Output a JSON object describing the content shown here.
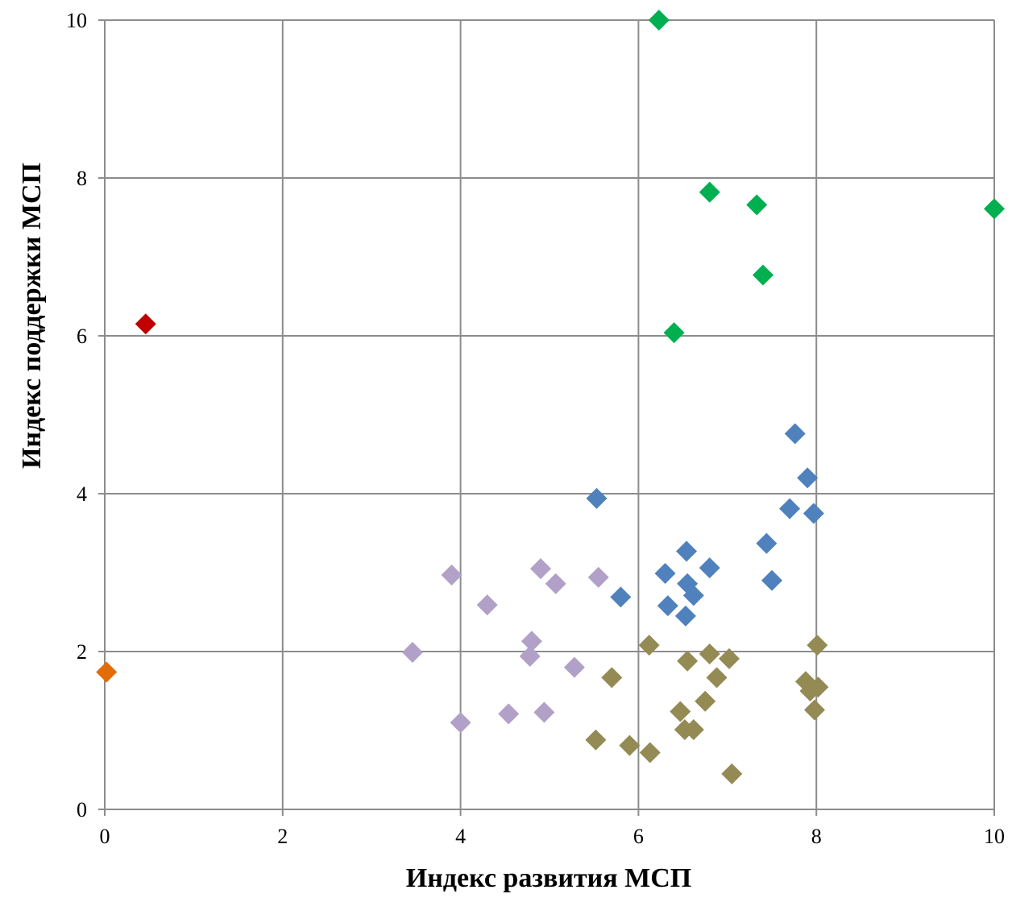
{
  "chart_data": {
    "type": "scatter",
    "xlabel": "Индекс развития МСП",
    "ylabel": "Индекс поддержки МСП",
    "xlim": [
      0,
      10
    ],
    "ylim": [
      0,
      10
    ],
    "xticks": [
      "0",
      "2",
      "4",
      "6",
      "8",
      "10"
    ],
    "yticks": [
      "0",
      "2",
      "4",
      "6",
      "8",
      "10"
    ],
    "grid": true,
    "marker": "diamond",
    "series": [
      {
        "color": "#00b050",
        "points": [
          [
            6.23,
            10.0
          ],
          [
            6.8,
            7.82
          ],
          [
            7.33,
            7.66
          ],
          [
            10.0,
            7.61
          ],
          [
            7.4,
            6.77
          ],
          [
            6.4,
            6.04
          ]
        ]
      },
      {
        "color": "#c00000",
        "points": [
          [
            0.46,
            6.15
          ]
        ]
      },
      {
        "color": "#e36c09",
        "points": [
          [
            0.02,
            1.74
          ]
        ]
      },
      {
        "color": "#4f81bd",
        "points": [
          [
            7.76,
            4.76
          ],
          [
            7.9,
            4.2
          ],
          [
            5.53,
            3.94
          ],
          [
            7.7,
            3.81
          ],
          [
            7.97,
            3.75
          ],
          [
            7.44,
            3.37
          ],
          [
            6.54,
            3.27
          ],
          [
            6.8,
            3.06
          ],
          [
            6.3,
            2.99
          ],
          [
            7.5,
            2.9
          ],
          [
            6.55,
            2.86
          ],
          [
            6.62,
            2.71
          ],
          [
            5.8,
            2.69
          ],
          [
            6.33,
            2.58
          ],
          [
            6.53,
            2.45
          ]
        ]
      },
      {
        "color": "#b1a0c7",
        "points": [
          [
            3.9,
            2.97
          ],
          [
            4.9,
            3.05
          ],
          [
            5.55,
            2.94
          ],
          [
            5.07,
            2.86
          ],
          [
            4.3,
            2.59
          ],
          [
            3.46,
            1.99
          ],
          [
            4.8,
            2.13
          ],
          [
            4.78,
            1.94
          ],
          [
            5.28,
            1.8
          ],
          [
            4.0,
            1.1
          ],
          [
            4.54,
            1.21
          ],
          [
            4.94,
            1.23
          ]
        ]
      },
      {
        "color": "#948a54",
        "points": [
          [
            6.12,
            2.08
          ],
          [
            8.01,
            2.08
          ],
          [
            6.8,
            1.97
          ],
          [
            7.02,
            1.91
          ],
          [
            6.55,
            1.88
          ],
          [
            5.7,
            1.67
          ],
          [
            6.88,
            1.67
          ],
          [
            7.88,
            1.62
          ],
          [
            8.02,
            1.55
          ],
          [
            7.93,
            1.5
          ],
          [
            6.75,
            1.37
          ],
          [
            6.47,
            1.24
          ],
          [
            7.98,
            1.26
          ],
          [
            6.52,
            1.01
          ],
          [
            6.62,
            1.01
          ],
          [
            5.52,
            0.88
          ],
          [
            5.9,
            0.81
          ],
          [
            6.13,
            0.72
          ],
          [
            7.05,
            0.45
          ]
        ]
      }
    ]
  }
}
